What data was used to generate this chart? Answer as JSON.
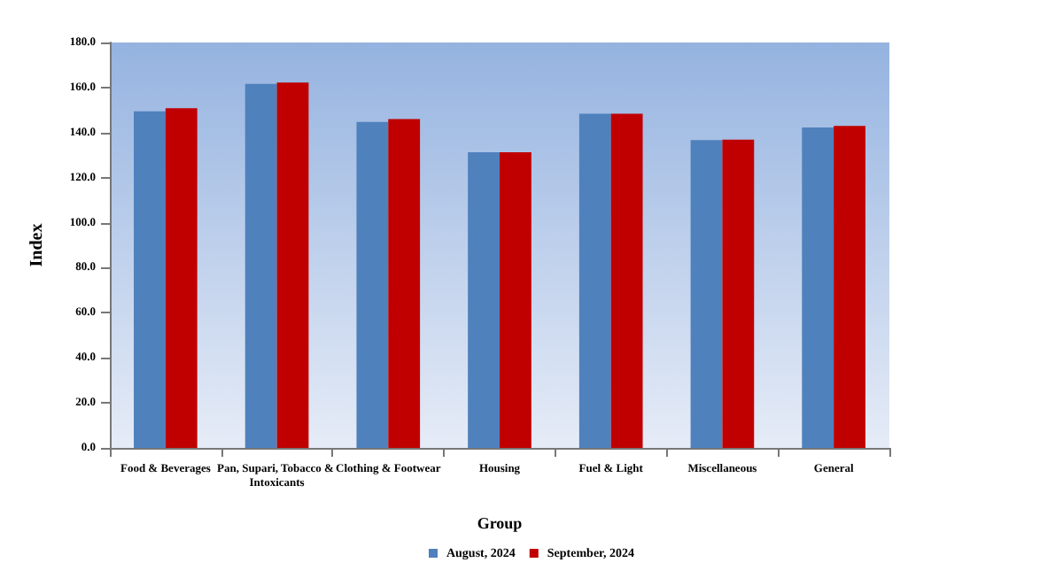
{
  "chart_data": {
    "type": "bar",
    "xlabel": "Group",
    "ylabel": "Index",
    "categories": [
      "Food & Beverages",
      "Pan, Supari, Tobacco & Intoxicants",
      "Clothing & Footwear",
      "Housing",
      "Fuel & Light",
      "Miscellaneous",
      "General"
    ],
    "series": [
      {
        "name": "August, 2024",
        "color": "#4f81bd",
        "values": [
          149.4,
          161.6,
          144.7,
          131.3,
          148.4,
          136.7,
          142.3
        ]
      },
      {
        "name": "September, 2024",
        "color": "#c00000",
        "values": [
          150.8,
          162.2,
          146.0,
          131.3,
          148.4,
          136.9,
          143.0
        ]
      }
    ],
    "ylim": [
      0,
      180
    ],
    "yticks": [
      {
        "value": 0,
        "label": "0.0"
      },
      {
        "value": 20,
        "label": "20.0"
      },
      {
        "value": 40,
        "label": "40.0"
      },
      {
        "value": 60,
        "label": "60.0"
      },
      {
        "value": 80,
        "label": "80.0"
      },
      {
        "value": 100,
        "label": "100.0"
      },
      {
        "value": 120,
        "label": "120.0"
      },
      {
        "value": 140,
        "label": "140.0"
      },
      {
        "value": 160,
        "label": "160.0"
      },
      {
        "value": 180,
        "label": "180.0"
      }
    ],
    "grid": false,
    "legend": "bottom"
  }
}
